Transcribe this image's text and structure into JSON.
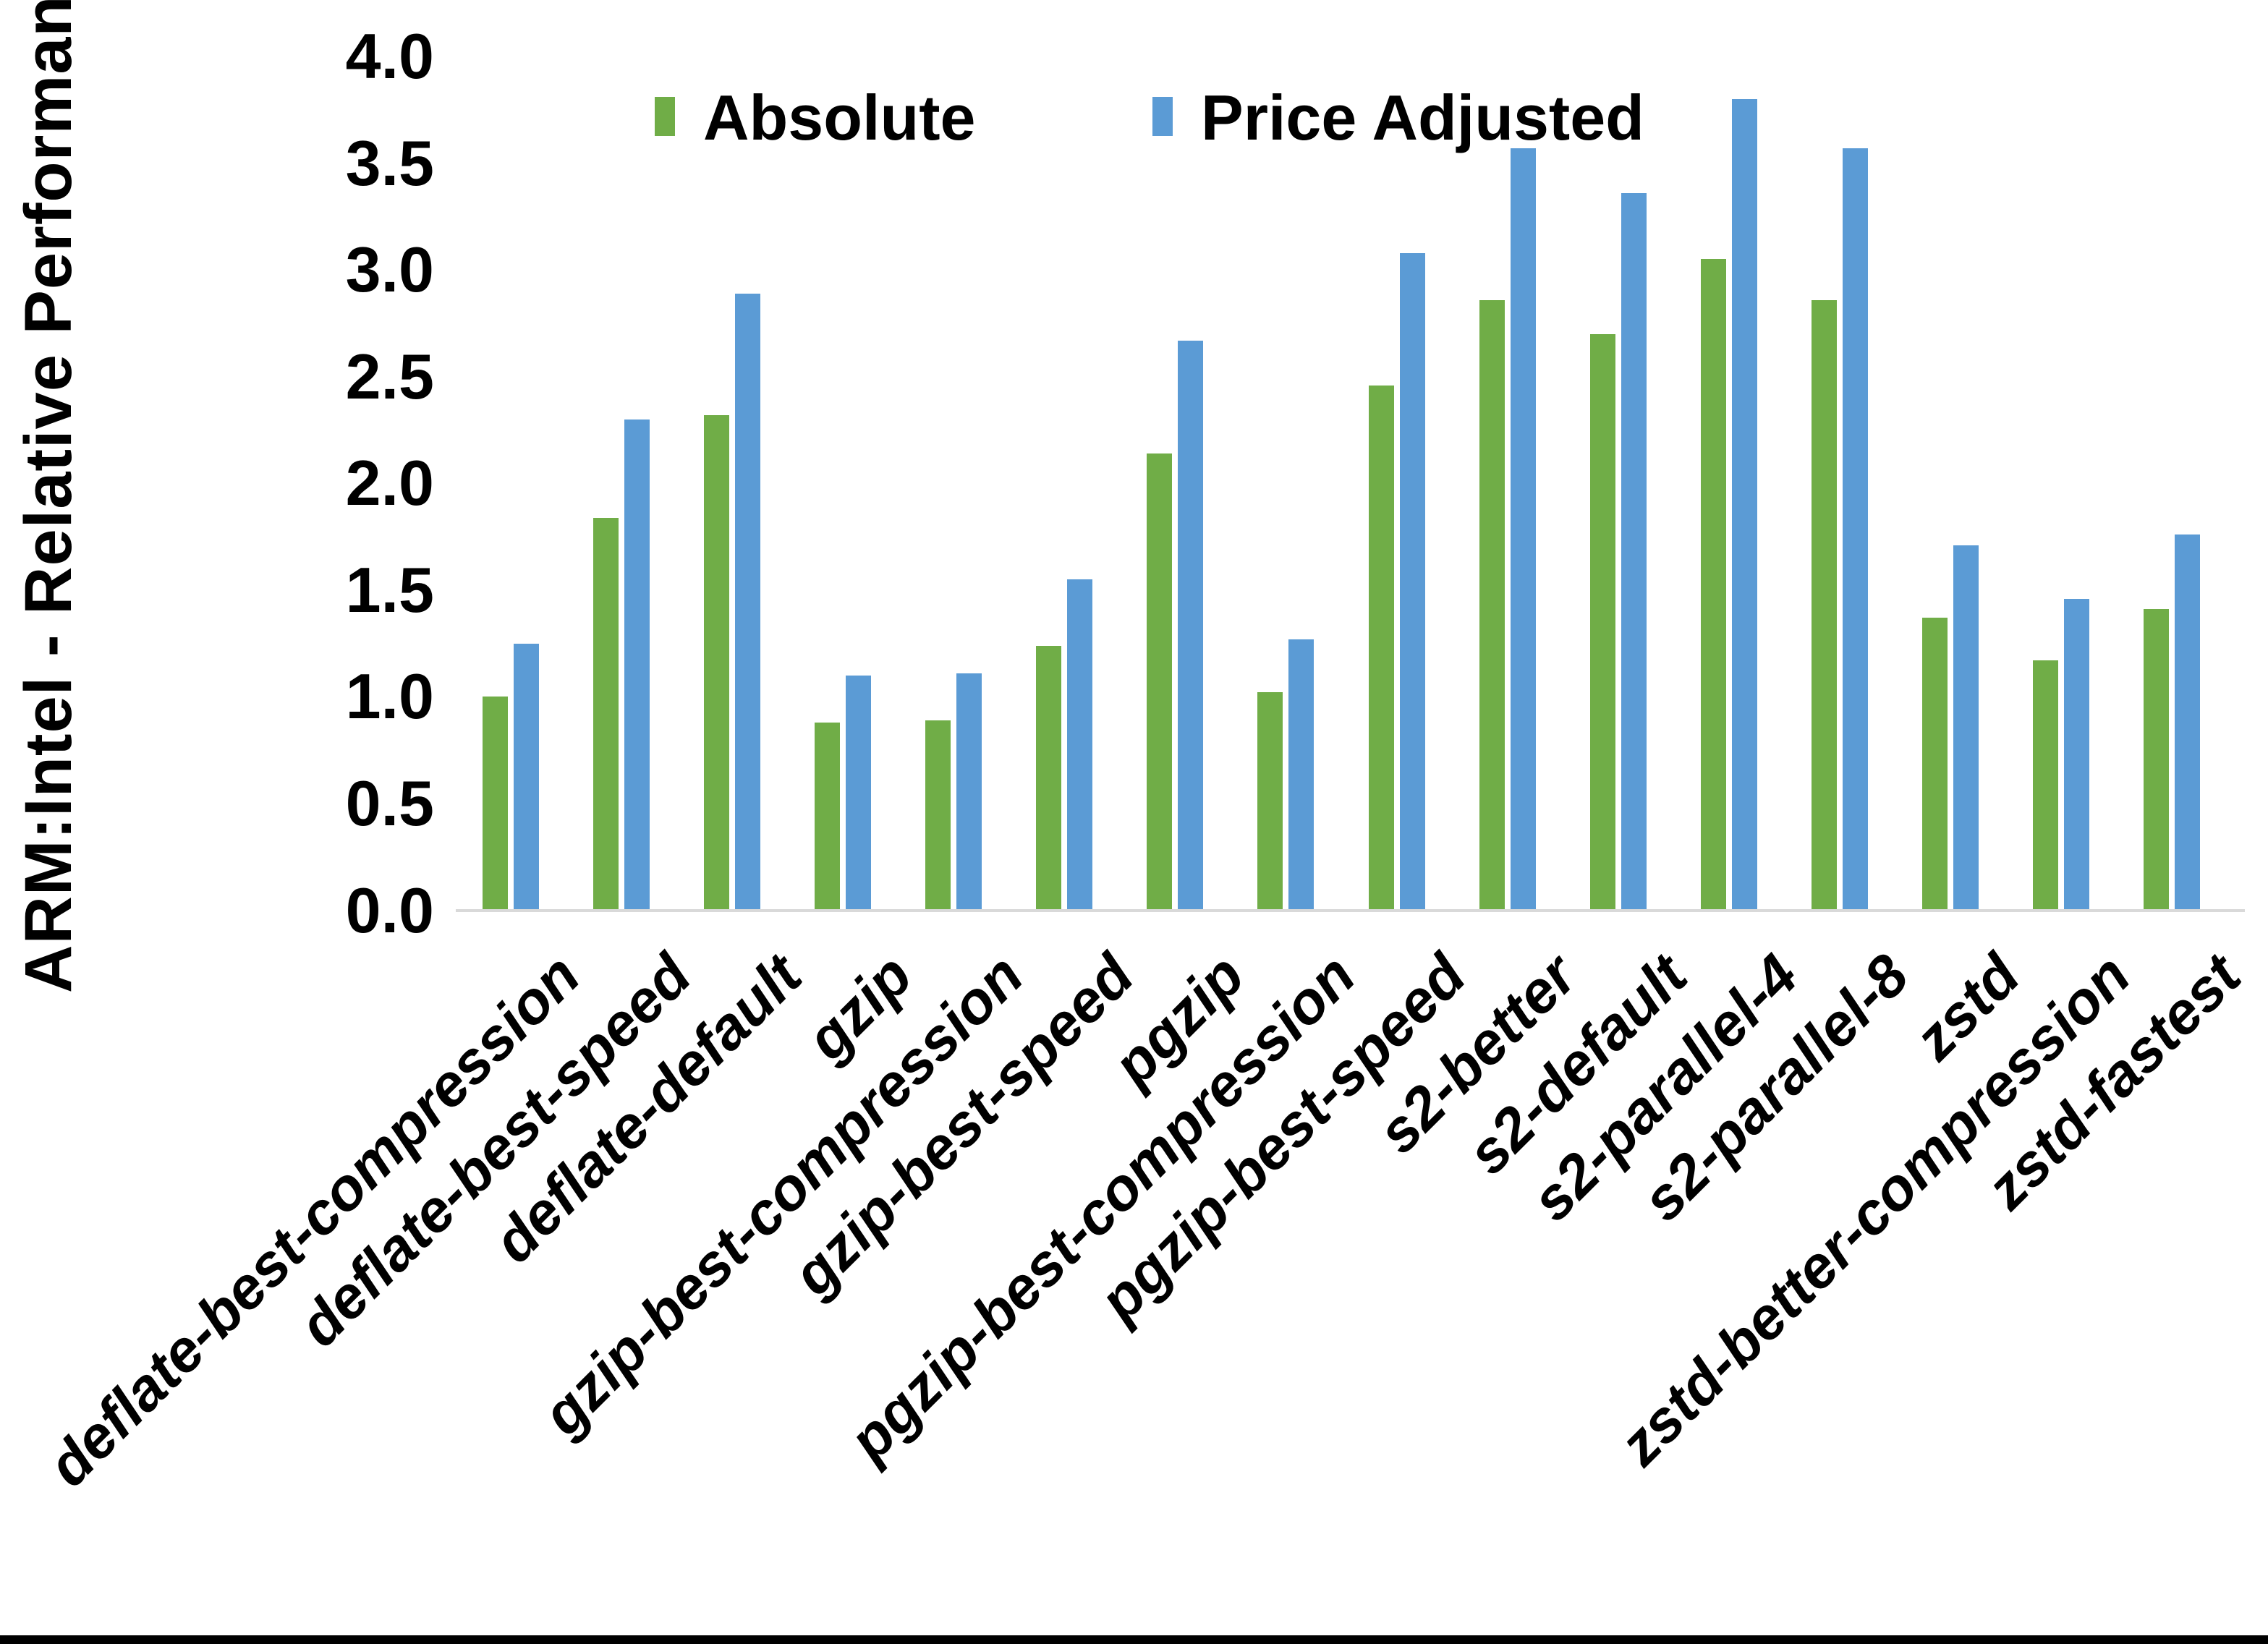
{
  "chart_data": {
    "type": "bar",
    "title": "",
    "ylabel": "ARM:Intel - Relative Performance",
    "xlabel": "",
    "ylim": [
      0.0,
      4.0
    ],
    "ytick_step": 0.5,
    "ytick_labels": [
      "0.0",
      "0.5",
      "1.0",
      "1.5",
      "2.0",
      "2.5",
      "3.0",
      "3.5",
      "4.0"
    ],
    "grid": "off",
    "legend_position": "top-center",
    "categories": [
      "deflate-best-compression",
      "deflate-best-speed",
      "deflate-default",
      "gzip",
      "gzip-best-compression",
      "gzip-best-speed",
      "pgzip",
      "pgzip-best-compression",
      "pgzip-best-speed",
      "s2-better",
      "s2-default",
      "s2-parallel-4",
      "s2-parallel-8",
      "zstd",
      "zstd-better-compression",
      "zstd-fastest"
    ],
    "series": [
      {
        "name": "Absolute",
        "color": "#70AD47",
        "values": [
          1.0,
          1.84,
          2.32,
          0.88,
          0.89,
          1.24,
          2.14,
          1.02,
          2.46,
          2.86,
          2.7,
          3.05,
          2.86,
          1.37,
          1.17,
          1.41
        ]
      },
      {
        "name": "Price Adjusted",
        "color": "#5B9BD5",
        "values": [
          1.25,
          2.3,
          2.89,
          1.1,
          1.11,
          1.55,
          2.67,
          1.27,
          3.08,
          3.57,
          3.36,
          3.8,
          3.57,
          1.71,
          1.46,
          1.76
        ]
      }
    ],
    "axis_color": "#d9d9d9",
    "text_color": "#000000"
  },
  "legend": {
    "absolute_label": "Absolute",
    "price_adjusted_label": "Price Adjusted"
  },
  "y_axis": {
    "title": "ARM:Intel - Relative Performance"
  }
}
